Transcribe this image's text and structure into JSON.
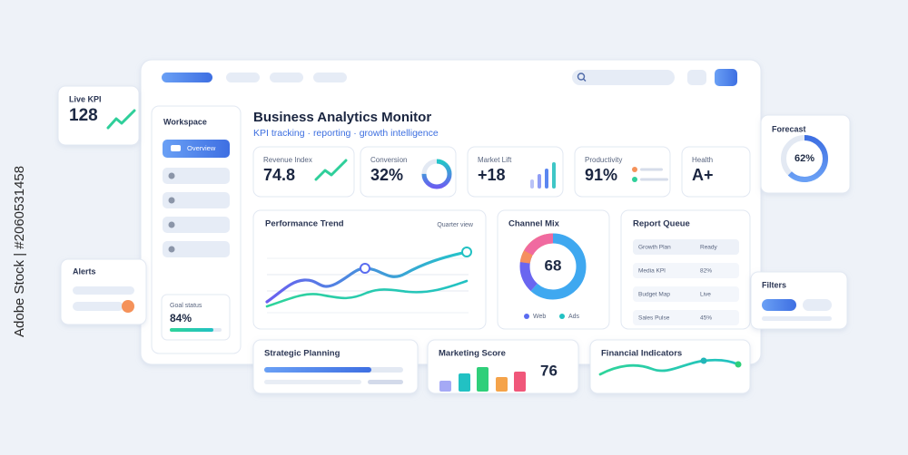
{
  "watermark": "Adobe Stock | #2060531458",
  "live_kpi": {
    "label": "Live KPI",
    "value": "128"
  },
  "alerts": {
    "title": "Alerts"
  },
  "sidebar": {
    "title": "Workspace",
    "active_item": "Overview",
    "goal_label": "Goal status",
    "goal_value": "84%"
  },
  "header": {
    "title": "Business Analytics Monitor",
    "subtitle": "KPI tracking · reporting · growth intelligence"
  },
  "kpis": [
    {
      "label": "Revenue Index",
      "value": "74.8"
    },
    {
      "label": "Conversion",
      "value": "32%"
    },
    {
      "label": "Market Lift",
      "value": "+18"
    },
    {
      "label": "Productivity",
      "value": "91%"
    },
    {
      "label": "Health",
      "value": "A+"
    }
  ],
  "performance": {
    "title": "Performance Trend",
    "control": "Quarter view"
  },
  "channel_mix": {
    "title": "Channel Mix",
    "value": "68",
    "legend": [
      "Web",
      "Ads"
    ]
  },
  "report_queue": {
    "title": "Report Queue",
    "rows": [
      [
        "Growth Plan",
        "Ready"
      ],
      [
        "Media KPI",
        "82%"
      ],
      [
        "Budget Map",
        "Live"
      ],
      [
        "Sales Pulse",
        "45%"
      ]
    ]
  },
  "strategic": {
    "title": "Strategic Planning"
  },
  "marketing": {
    "title": "Marketing Score",
    "value": "76"
  },
  "financial": {
    "title": "Financial Indicators"
  },
  "forecast": {
    "title": "Forecast",
    "value": "62%"
  },
  "filters": {
    "title": "Filters"
  }
}
